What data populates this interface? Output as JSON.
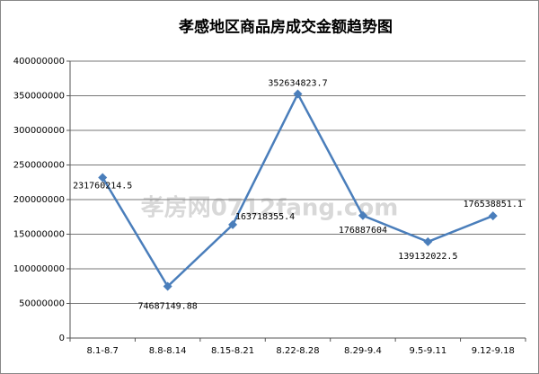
{
  "chart_data": {
    "type": "line",
    "title": "孝感地区商品房成交金额趋势图",
    "watermark": "孝房网0712fang.com",
    "categories": [
      "8.1-8.7",
      "8.8-8.14",
      "8.15-8.21",
      "8.22-8.28",
      "8.29-9.4",
      "9.5-9.11",
      "9.12-9.18"
    ],
    "series": [
      {
        "color": "#4a7ebb",
        "values": [
          231760214.5,
          74687149.88,
          163718355.4,
          352634823.7,
          176887604,
          139132022.5,
          176538851.1
        ]
      }
    ],
    "ylim": [
      0,
      400000000
    ],
    "yticks": [
      0,
      50000000,
      100000000,
      150000000,
      200000000,
      250000000,
      300000000,
      350000000,
      400000000
    ],
    "grid": true
  }
}
